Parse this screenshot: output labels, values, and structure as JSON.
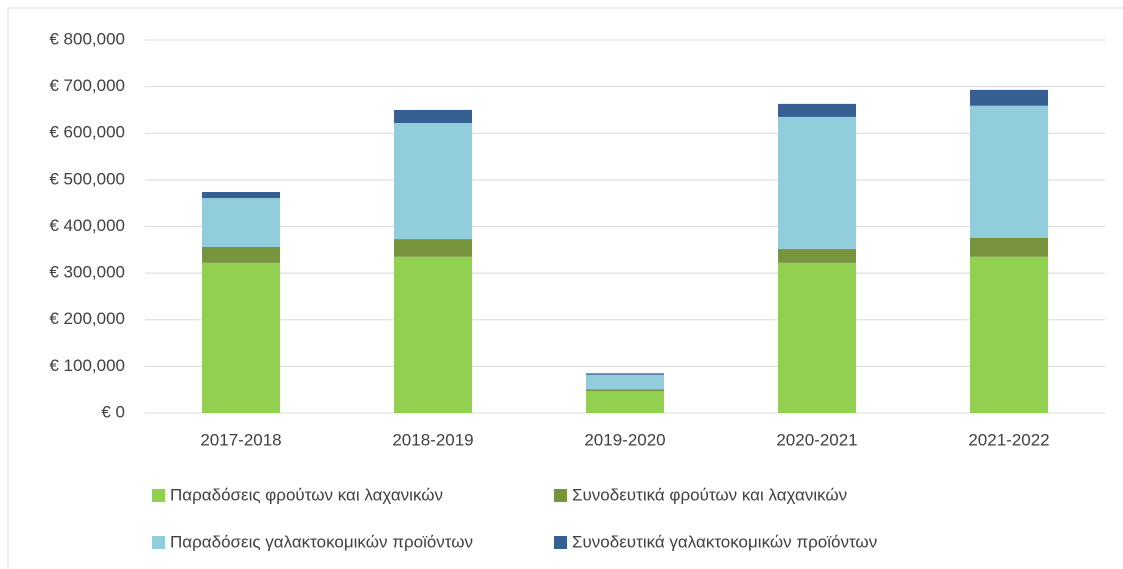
{
  "chart_data": {
    "type": "stacked_bar",
    "categories": [
      "2017-2018",
      "2018-2019",
      "2019-2020",
      "2020-2021",
      "2021-2022"
    ],
    "series": [
      {
        "name": "Παραδόσεις φρούτων και λαχανικών",
        "color": "#92d050",
        "values": [
          322000,
          335000,
          47000,
          322000,
          335000
        ]
      },
      {
        "name": "Συνοδευτικά φρούτων και λαχανικών",
        "color": "#77933c",
        "values": [
          34000,
          38000,
          4000,
          30000,
          41000
        ]
      },
      {
        "name": "Παραδόσεις γαλακτοκομικών προϊόντων",
        "color": "#92cddc",
        "values": [
          105000,
          249000,
          31000,
          283000,
          283000
        ]
      },
      {
        "name": "Συνοδευτικά γαλακτοκομικών προϊόντων",
        "color": "#366092",
        "values": [
          13000,
          28000,
          3000,
          28000,
          34000
        ]
      }
    ],
    "ylim": [
      0,
      800000
    ],
    "yticks": [
      {
        "value": 0,
        "label": "€ 0"
      },
      {
        "value": 100000,
        "label": "€ 100,000"
      },
      {
        "value": 200000,
        "label": "€ 200,000"
      },
      {
        "value": 300000,
        "label": "€ 300,000"
      },
      {
        "value": 400000,
        "label": "€ 400,000"
      },
      {
        "value": 500000,
        "label": "€ 500,000"
      },
      {
        "value": 600000,
        "label": "€ 600,000"
      },
      {
        "value": 700000,
        "label": "€ 700,000"
      },
      {
        "value": 800000,
        "label": "€ 800,000"
      }
    ],
    "grid": true
  }
}
